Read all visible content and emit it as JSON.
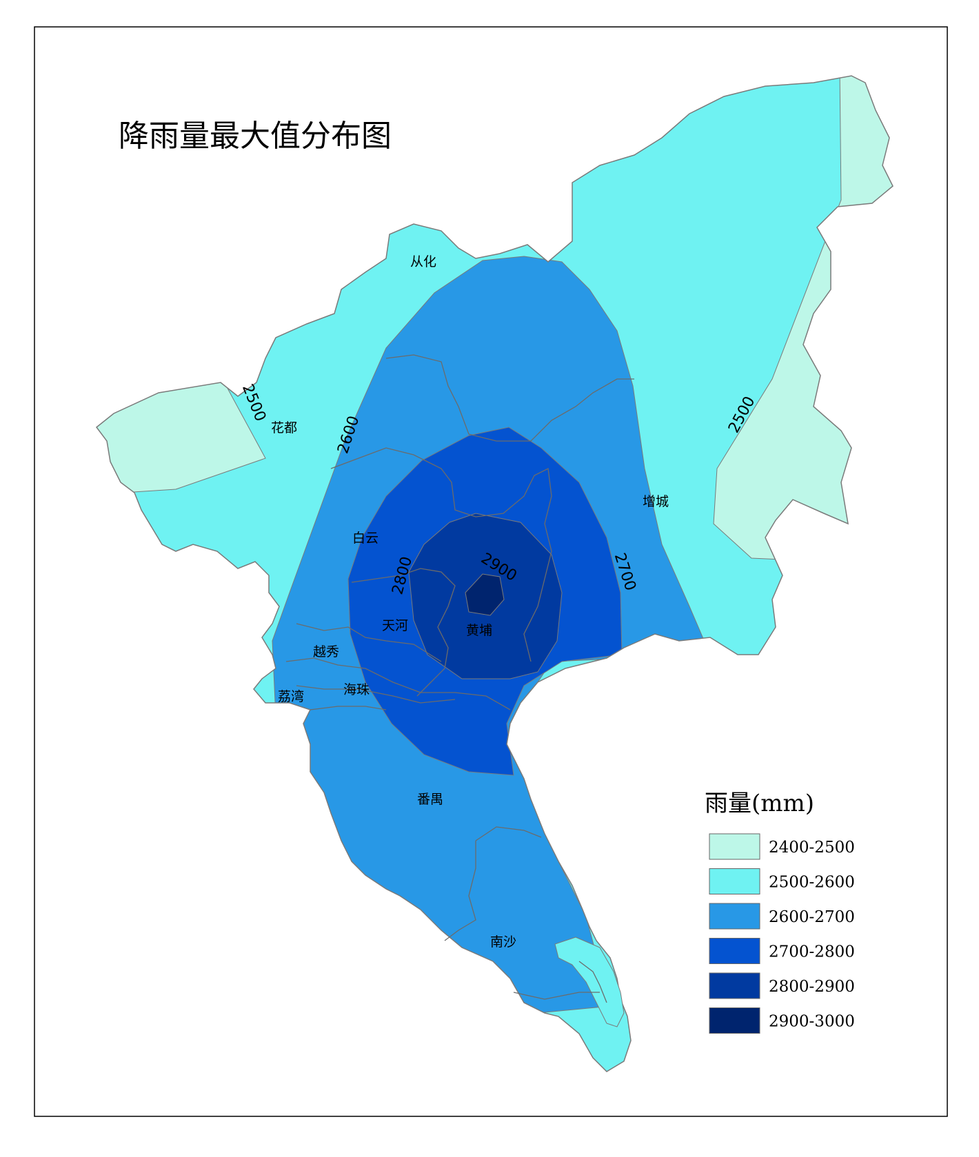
{
  "title": "降雨量最大值分布图",
  "legend": {
    "title": "雨量(mm)",
    "items": [
      {
        "label": "2400-2500",
        "color": "#bdf7e8"
      },
      {
        "label": "2500-2600",
        "color": "#6ff2f2"
      },
      {
        "label": "2600-2700",
        "color": "#2898e6"
      },
      {
        "label": "2700-2800",
        "color": "#0453d0"
      },
      {
        "label": "2800-2900",
        "color": "#013aa0"
      },
      {
        "label": "2900-3000",
        "color": "#00246e"
      }
    ]
  },
  "districts": {
    "conghua": "从化",
    "huadu": "花都",
    "zengcheng": "增城",
    "baiyun": "白云",
    "tianhe": "天河",
    "huangpu": "黄埔",
    "yuexiu": "越秀",
    "liwan": "荔湾",
    "haizhu": "海珠",
    "panyu": "番禺",
    "nansha": "南沙"
  },
  "contours": [
    "2500",
    "2600",
    "2500",
    "2700",
    "2800",
    "2900"
  ]
}
